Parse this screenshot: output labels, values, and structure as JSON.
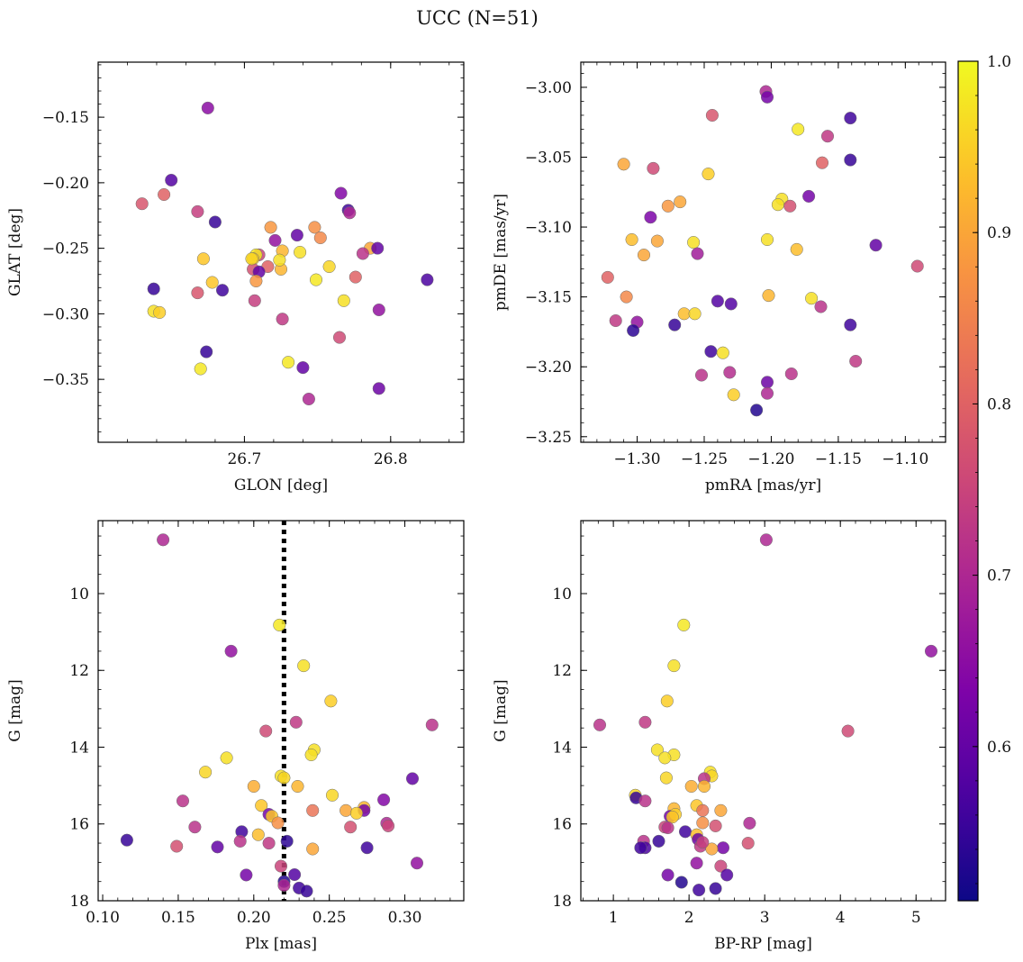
{
  "chart_data": {
    "title": "UCC (N=51)",
    "colorbar": {
      "colormap": "plasma",
      "range": [
        0.51,
        1.0
      ],
      "ticks": [
        "0.6",
        "0.7",
        "0.8",
        "0.9",
        "1.0"
      ]
    },
    "panels": [
      {
        "id": "glon-glat",
        "type": "scatter",
        "xlabel": "GLON [deg]",
        "ylabel": "GLAT [deg]",
        "xlim": [
          26.6,
          26.85
        ],
        "ylim": [
          -0.398,
          -0.108
        ],
        "xticks": [
          "26.7",
          "26.8"
        ],
        "yticks": [
          "−0.15",
          "−0.20",
          "−0.25",
          "−0.30",
          "−0.35"
        ],
        "points": [
          [
            26.675,
            -0.143,
            0.65
          ],
          [
            26.65,
            -0.198,
            0.58
          ],
          [
            26.63,
            -0.216,
            0.78
          ],
          [
            26.645,
            -0.209,
            0.8
          ],
          [
            26.668,
            -0.222,
            0.74
          ],
          [
            26.68,
            -0.23,
            0.55
          ],
          [
            26.766,
            -0.208,
            0.64
          ],
          [
            26.771,
            -0.221,
            0.56
          ],
          [
            26.772,
            -0.223,
            0.7
          ],
          [
            26.718,
            -0.234,
            0.88
          ],
          [
            26.748,
            -0.234,
            0.87
          ],
          [
            26.752,
            -0.242,
            0.86
          ],
          [
            26.736,
            -0.24,
            0.6
          ],
          [
            26.721,
            -0.244,
            0.66
          ],
          [
            26.786,
            -0.25,
            0.9
          ],
          [
            26.791,
            -0.25,
            0.6
          ],
          [
            26.781,
            -0.254,
            0.72
          ],
          [
            26.726,
            -0.252,
            0.92
          ],
          [
            26.71,
            -0.255,
            0.75
          ],
          [
            26.708,
            -0.255,
            0.98
          ],
          [
            26.706,
            -0.258,
            0.95
          ],
          [
            26.672,
            -0.258,
            0.94
          ],
          [
            26.758,
            -0.264,
            0.96
          ],
          [
            26.716,
            -0.264,
            0.8
          ],
          [
            26.706,
            -0.266,
            0.77
          ],
          [
            26.71,
            -0.268,
            0.6
          ],
          [
            26.725,
            -0.266,
            0.92
          ],
          [
            26.738,
            -0.253,
            0.97
          ],
          [
            26.749,
            -0.274,
            0.98
          ],
          [
            26.776,
            -0.272,
            0.8
          ],
          [
            26.708,
            -0.275,
            0.88
          ],
          [
            26.678,
            -0.276,
            0.94
          ],
          [
            26.685,
            -0.282,
            0.56
          ],
          [
            26.638,
            -0.281,
            0.55
          ],
          [
            26.668,
            -0.284,
            0.78
          ],
          [
            26.707,
            -0.29,
            0.74
          ],
          [
            26.768,
            -0.29,
            0.97
          ],
          [
            26.792,
            -0.297,
            0.66
          ],
          [
            26.638,
            -0.298,
            0.97
          ],
          [
            26.642,
            -0.299,
            0.95
          ],
          [
            26.726,
            -0.304,
            0.73
          ],
          [
            26.765,
            -0.318,
            0.76
          ],
          [
            26.674,
            -0.329,
            0.55
          ],
          [
            26.73,
            -0.337,
            0.98
          ],
          [
            26.67,
            -0.342,
            0.98
          ],
          [
            26.74,
            -0.341,
            0.6
          ],
          [
            26.792,
            -0.357,
            0.61
          ],
          [
            26.744,
            -0.365,
            0.7
          ],
          [
            26.825,
            -0.274,
            0.57
          ],
          [
            26.724,
            -0.259,
            0.97
          ],
          [
            26.705,
            -0.258,
            0.96
          ]
        ]
      },
      {
        "id": "pmra-pmde",
        "type": "scatter",
        "xlabel": "pmRA [mas/yr]",
        "ylabel": "pmDE [mas/yr]",
        "xlim": [
          -1.342,
          -1.07
        ],
        "ylim": [
          -3.254,
          -2.982
        ],
        "xticks": [
          "−1.30",
          "−1.25",
          "−1.20",
          "−1.15",
          "−1.10"
        ],
        "yticks": [
          "−3.00",
          "−3.05",
          "−3.10",
          "−3.15",
          "−3.20",
          "−3.25"
        ],
        "points": [
          [
            -1.204,
            -3.003,
            0.7
          ],
          [
            -1.203,
            -3.007,
            0.62
          ],
          [
            -1.244,
            -3.02,
            0.78
          ],
          [
            -1.141,
            -3.022,
            0.56
          ],
          [
            -1.18,
            -3.03,
            0.98
          ],
          [
            -1.158,
            -3.035,
            0.73
          ],
          [
            -1.141,
            -3.052,
            0.55
          ],
          [
            -1.31,
            -3.055,
            0.9
          ],
          [
            -1.288,
            -3.058,
            0.76
          ],
          [
            -1.162,
            -3.054,
            0.8
          ],
          [
            -1.247,
            -3.062,
            0.95
          ],
          [
            -1.172,
            -3.078,
            0.62
          ],
          [
            -1.192,
            -3.08,
            0.97
          ],
          [
            -1.195,
            -3.084,
            0.97
          ],
          [
            -1.186,
            -3.085,
            0.77
          ],
          [
            -1.268,
            -3.082,
            0.9
          ],
          [
            -1.277,
            -3.085,
            0.88
          ],
          [
            -1.29,
            -3.093,
            0.63
          ],
          [
            -1.304,
            -3.109,
            0.93
          ],
          [
            -1.285,
            -3.11,
            0.9
          ],
          [
            -1.203,
            -3.109,
            0.97
          ],
          [
            -1.258,
            -3.111,
            0.97
          ],
          [
            -1.122,
            -3.113,
            0.6
          ],
          [
            -1.181,
            -3.116,
            0.93
          ],
          [
            -1.295,
            -3.12,
            0.9
          ],
          [
            -1.255,
            -3.119,
            0.68
          ],
          [
            -1.091,
            -3.128,
            0.76
          ],
          [
            -1.322,
            -3.136,
            0.8
          ],
          [
            -1.308,
            -3.15,
            0.86
          ],
          [
            -1.202,
            -3.149,
            0.92
          ],
          [
            -1.17,
            -3.151,
            0.97
          ],
          [
            -1.24,
            -3.153,
            0.58
          ],
          [
            -1.23,
            -3.155,
            0.58
          ],
          [
            -1.163,
            -3.157,
            0.72
          ],
          [
            -1.265,
            -3.162,
            0.93
          ],
          [
            -1.257,
            -3.162,
            0.96
          ],
          [
            -1.3,
            -3.168,
            0.66
          ],
          [
            -1.316,
            -3.167,
            0.73
          ],
          [
            -1.141,
            -3.17,
            0.56
          ],
          [
            -1.272,
            -3.17,
            0.55
          ],
          [
            -1.303,
            -3.174,
            0.54
          ],
          [
            -1.245,
            -3.189,
            0.56
          ],
          [
            -1.236,
            -3.19,
            0.97
          ],
          [
            -1.137,
            -3.196,
            0.73
          ],
          [
            -1.252,
            -3.206,
            0.72
          ],
          [
            -1.231,
            -3.204,
            0.71
          ],
          [
            -1.185,
            -3.205,
            0.72
          ],
          [
            -1.203,
            -3.211,
            0.61
          ],
          [
            -1.203,
            -3.219,
            0.7
          ],
          [
            -1.228,
            -3.22,
            0.95
          ],
          [
            -1.211,
            -3.231,
            0.53
          ]
        ]
      },
      {
        "id": "plx-g",
        "type": "scatter",
        "xlabel": "Plx [mas]",
        "ylabel": "G [mag]",
        "xlim": [
          0.097,
          0.339
        ],
        "ylim": [
          18.0,
          8.1
        ],
        "y_inverted": true,
        "xticks": [
          "0.10",
          "0.15",
          "0.20",
          "0.25",
          "0.30"
        ],
        "yticks": [
          "10",
          "12",
          "14",
          "16",
          "18"
        ],
        "vline": {
          "x": 0.22,
          "style": "dotted"
        },
        "points": [
          [
            0.14,
            8.6,
            0.7
          ],
          [
            0.217,
            10.82,
            0.98
          ],
          [
            0.185,
            11.5,
            0.66
          ],
          [
            0.233,
            11.88,
            0.97
          ],
          [
            0.251,
            12.8,
            0.95
          ],
          [
            0.318,
            13.42,
            0.72
          ],
          [
            0.228,
            13.35,
            0.73
          ],
          [
            0.208,
            13.58,
            0.76
          ],
          [
            0.24,
            14.07,
            0.97
          ],
          [
            0.238,
            14.2,
            0.97
          ],
          [
            0.182,
            14.28,
            0.97
          ],
          [
            0.168,
            14.65,
            0.96
          ],
          [
            0.218,
            14.75,
            0.97
          ],
          [
            0.22,
            14.8,
            0.96
          ],
          [
            0.305,
            14.82,
            0.6
          ],
          [
            0.229,
            15.02,
            0.92
          ],
          [
            0.2,
            15.02,
            0.91
          ],
          [
            0.252,
            15.25,
            0.96
          ],
          [
            0.153,
            15.4,
            0.72
          ],
          [
            0.286,
            15.37,
            0.64
          ],
          [
            0.205,
            15.52,
            0.94
          ],
          [
            0.273,
            15.57,
            0.92
          ],
          [
            0.273,
            15.65,
            0.62
          ],
          [
            0.261,
            15.65,
            0.9
          ],
          [
            0.239,
            15.65,
            0.83
          ],
          [
            0.268,
            15.72,
            0.95
          ],
          [
            0.21,
            15.75,
            0.62
          ],
          [
            0.212,
            15.8,
            0.94
          ],
          [
            0.216,
            15.97,
            0.87
          ],
          [
            0.288,
            15.98,
            0.7
          ],
          [
            0.289,
            16.05,
            0.75
          ],
          [
            0.161,
            16.08,
            0.72
          ],
          [
            0.264,
            16.08,
            0.77
          ],
          [
            0.192,
            16.2,
            0.56
          ],
          [
            0.203,
            16.28,
            0.93
          ],
          [
            0.116,
            16.42,
            0.55
          ],
          [
            0.191,
            16.45,
            0.72
          ],
          [
            0.222,
            16.45,
            0.54
          ],
          [
            0.21,
            16.5,
            0.73
          ],
          [
            0.149,
            16.58,
            0.77
          ],
          [
            0.176,
            16.6,
            0.6
          ],
          [
            0.275,
            16.62,
            0.56
          ],
          [
            0.239,
            16.65,
            0.9
          ],
          [
            0.218,
            17.1,
            0.75
          ],
          [
            0.308,
            17.02,
            0.66
          ],
          [
            0.195,
            17.33,
            0.62
          ],
          [
            0.227,
            17.32,
            0.58
          ],
          [
            0.22,
            17.5,
            0.53
          ],
          [
            0.23,
            17.67,
            0.56
          ],
          [
            0.235,
            17.75,
            0.55
          ],
          [
            0.22,
            17.6,
            0.7
          ]
        ]
      },
      {
        "id": "bprp-g",
        "type": "scatter",
        "xlabel": "BP-RP [mag]",
        "ylabel": "G [mag]",
        "xlim": [
          0.57,
          5.39
        ],
        "ylim": [
          18.0,
          8.1
        ],
        "y_inverted": true,
        "xticks": [
          "1",
          "2",
          "3",
          "4",
          "5"
        ],
        "yticks": [
          "10",
          "12",
          "14",
          "16",
          "18"
        ],
        "points": [
          [
            3.02,
            8.6,
            0.7
          ],
          [
            1.93,
            10.82,
            0.98
          ],
          [
            5.2,
            11.5,
            0.66
          ],
          [
            1.8,
            11.88,
            0.97
          ],
          [
            1.71,
            12.8,
            0.95
          ],
          [
            0.82,
            13.42,
            0.72
          ],
          [
            1.42,
            13.35,
            0.73
          ],
          [
            4.1,
            13.58,
            0.76
          ],
          [
            1.58,
            14.07,
            0.97
          ],
          [
            1.8,
            14.2,
            0.97
          ],
          [
            1.68,
            14.28,
            0.97
          ],
          [
            1.7,
            14.8,
            0.96
          ],
          [
            2.28,
            14.65,
            0.97
          ],
          [
            2.3,
            14.75,
            0.96
          ],
          [
            2.2,
            14.82,
            0.72
          ],
          [
            2.03,
            15.02,
            0.91
          ],
          [
            2.2,
            15.02,
            0.92
          ],
          [
            1.29,
            15.25,
            0.96
          ],
          [
            1.3,
            15.32,
            0.55
          ],
          [
            1.42,
            15.4,
            0.72
          ],
          [
            2.1,
            15.52,
            0.94
          ],
          [
            1.8,
            15.6,
            0.92
          ],
          [
            2.18,
            15.65,
            0.83
          ],
          [
            2.42,
            15.65,
            0.9
          ],
          [
            1.75,
            15.8,
            0.62
          ],
          [
            1.82,
            15.75,
            0.95
          ],
          [
            1.78,
            15.82,
            0.94
          ],
          [
            2.18,
            15.97,
            0.87
          ],
          [
            2.8,
            15.98,
            0.7
          ],
          [
            2.35,
            16.05,
            0.77
          ],
          [
            1.68,
            16.08,
            0.75
          ],
          [
            1.72,
            16.1,
            0.72
          ],
          [
            1.95,
            16.2,
            0.56
          ],
          [
            2.1,
            16.28,
            0.93
          ],
          [
            2.12,
            16.4,
            0.61
          ],
          [
            1.6,
            16.45,
            0.55
          ],
          [
            1.4,
            16.45,
            0.72
          ],
          [
            2.78,
            16.5,
            0.77
          ],
          [
            2.15,
            16.58,
            0.73
          ],
          [
            1.42,
            16.62,
            0.57
          ],
          [
            2.45,
            16.62,
            0.62
          ],
          [
            2.3,
            16.65,
            0.9
          ],
          [
            2.1,
            17.02,
            0.66
          ],
          [
            2.42,
            17.1,
            0.75
          ],
          [
            1.72,
            17.33,
            0.62
          ],
          [
            2.5,
            17.33,
            0.58
          ],
          [
            1.9,
            17.52,
            0.53
          ],
          [
            2.13,
            17.72,
            0.56
          ],
          [
            2.35,
            17.68,
            0.55
          ],
          [
            1.36,
            16.62,
            0.56
          ],
          [
            2.18,
            16.48,
            0.74
          ]
        ]
      }
    ]
  }
}
